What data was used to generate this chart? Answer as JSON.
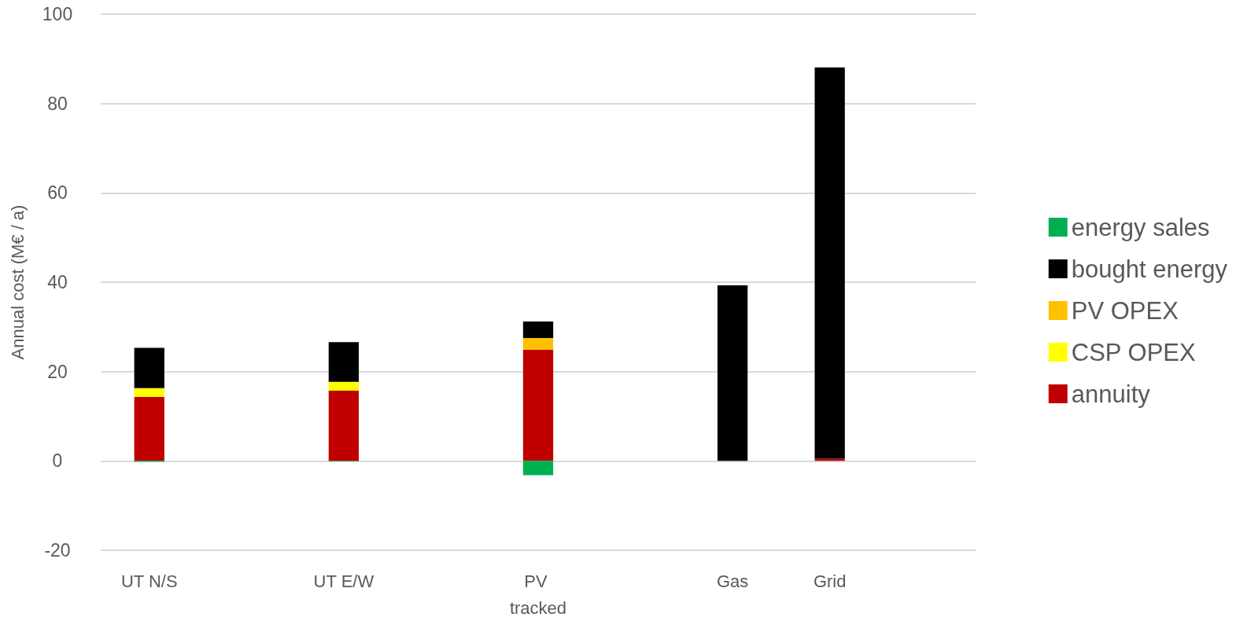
{
  "chart_data": {
    "type": "bar",
    "stacked": true,
    "ylabel": "Annual cost (M€ / a)",
    "categories": [
      "UT N/S",
      null,
      "UT E/W",
      null,
      "PV tracked",
      null,
      "Gas",
      "Grid",
      null
    ],
    "series": [
      {
        "name": "annuity",
        "color": "#c00000",
        "values": [
          14.3,
          null,
          15.7,
          null,
          24.9,
          null,
          null,
          0.5,
          null
        ]
      },
      {
        "name": "CSP OPEX",
        "color": "#ffff00",
        "values": [
          2.0,
          null,
          2.0,
          null,
          null,
          null,
          null,
          null,
          null
        ]
      },
      {
        "name": "PV OPEX",
        "color": "#ffc000",
        "values": [
          null,
          null,
          null,
          null,
          2.6,
          null,
          null,
          null,
          null
        ]
      },
      {
        "name": "bought energy",
        "color": "#000000",
        "values": [
          9.0,
          null,
          8.9,
          null,
          3.7,
          null,
          39.3,
          87.6,
          null
        ]
      },
      {
        "name": "energy sales",
        "color": "#00b050",
        "values": [
          -0.2,
          null,
          -0.1,
          null,
          -3.2,
          null,
          null,
          null,
          null
        ]
      }
    ],
    "ylim": [
      -20,
      100
    ],
    "yticks": [
      -20,
      0,
      20,
      40,
      60,
      80,
      100
    ],
    "grid": "y",
    "legend": "right"
  }
}
